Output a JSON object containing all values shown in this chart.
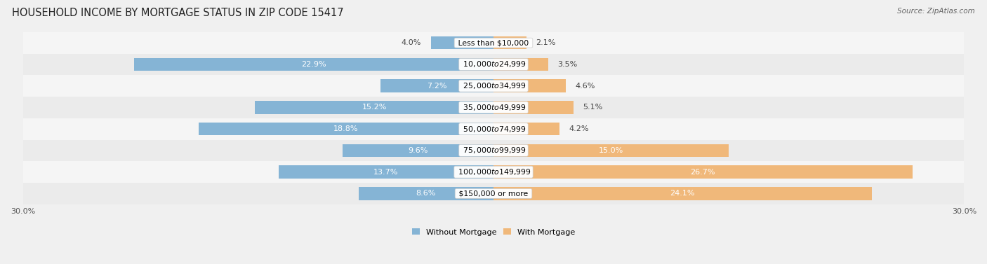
{
  "title": "HOUSEHOLD INCOME BY MORTGAGE STATUS IN ZIP CODE 15417",
  "source": "Source: ZipAtlas.com",
  "categories": [
    "Less than $10,000",
    "$10,000 to $24,999",
    "$25,000 to $34,999",
    "$35,000 to $49,999",
    "$50,000 to $74,999",
    "$75,000 to $99,999",
    "$100,000 to $149,999",
    "$150,000 or more"
  ],
  "without_mortgage": [
    4.0,
    22.9,
    7.2,
    15.2,
    18.8,
    9.6,
    13.7,
    8.6
  ],
  "with_mortgage": [
    2.1,
    3.5,
    4.6,
    5.1,
    4.2,
    15.0,
    26.7,
    24.1
  ],
  "color_without": "#85b4d5",
  "color_with": "#f0b87a",
  "axis_limit": 30.0,
  "bg_color": "#f0f0f0",
  "row_bg_odd": "#ebebeb",
  "row_bg_even": "#f5f5f5",
  "legend_label_without": "Without Mortgage",
  "legend_label_with": "With Mortgage",
  "title_fontsize": 10.5,
  "label_fontsize": 8.0,
  "category_fontsize": 7.8,
  "axis_label_fontsize": 8.0
}
